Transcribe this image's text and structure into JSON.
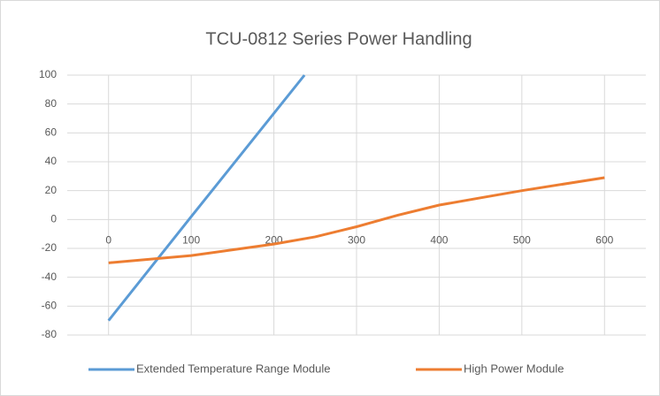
{
  "chart_data": {
    "type": "line",
    "title": "TCU-0812 Series Power Handling",
    "series": [
      {
        "name": "Extended Temperature Range Module",
        "color": "#5b9bd5",
        "x": [
          0,
          100,
          237
        ],
        "values": [
          -70,
          2,
          100
        ]
      },
      {
        "name": "High Power Module",
        "color": "#ed7d31",
        "x": [
          0,
          100,
          150,
          200,
          250,
          300,
          350,
          400,
          450,
          500,
          600
        ],
        "values": [
          -30,
          -25,
          -21,
          -17,
          -12,
          -5,
          3,
          10,
          15,
          20,
          29
        ]
      }
    ],
    "xlim": [
      -50,
      650
    ],
    "xticks": [
      0,
      100,
      200,
      300,
      400,
      500,
      600
    ],
    "ylim": [
      -80,
      100
    ],
    "yticks": [
      100,
      80,
      60,
      40,
      20,
      0,
      -20,
      -40,
      -60,
      -80
    ],
    "grid": true,
    "legend": "bottom"
  }
}
